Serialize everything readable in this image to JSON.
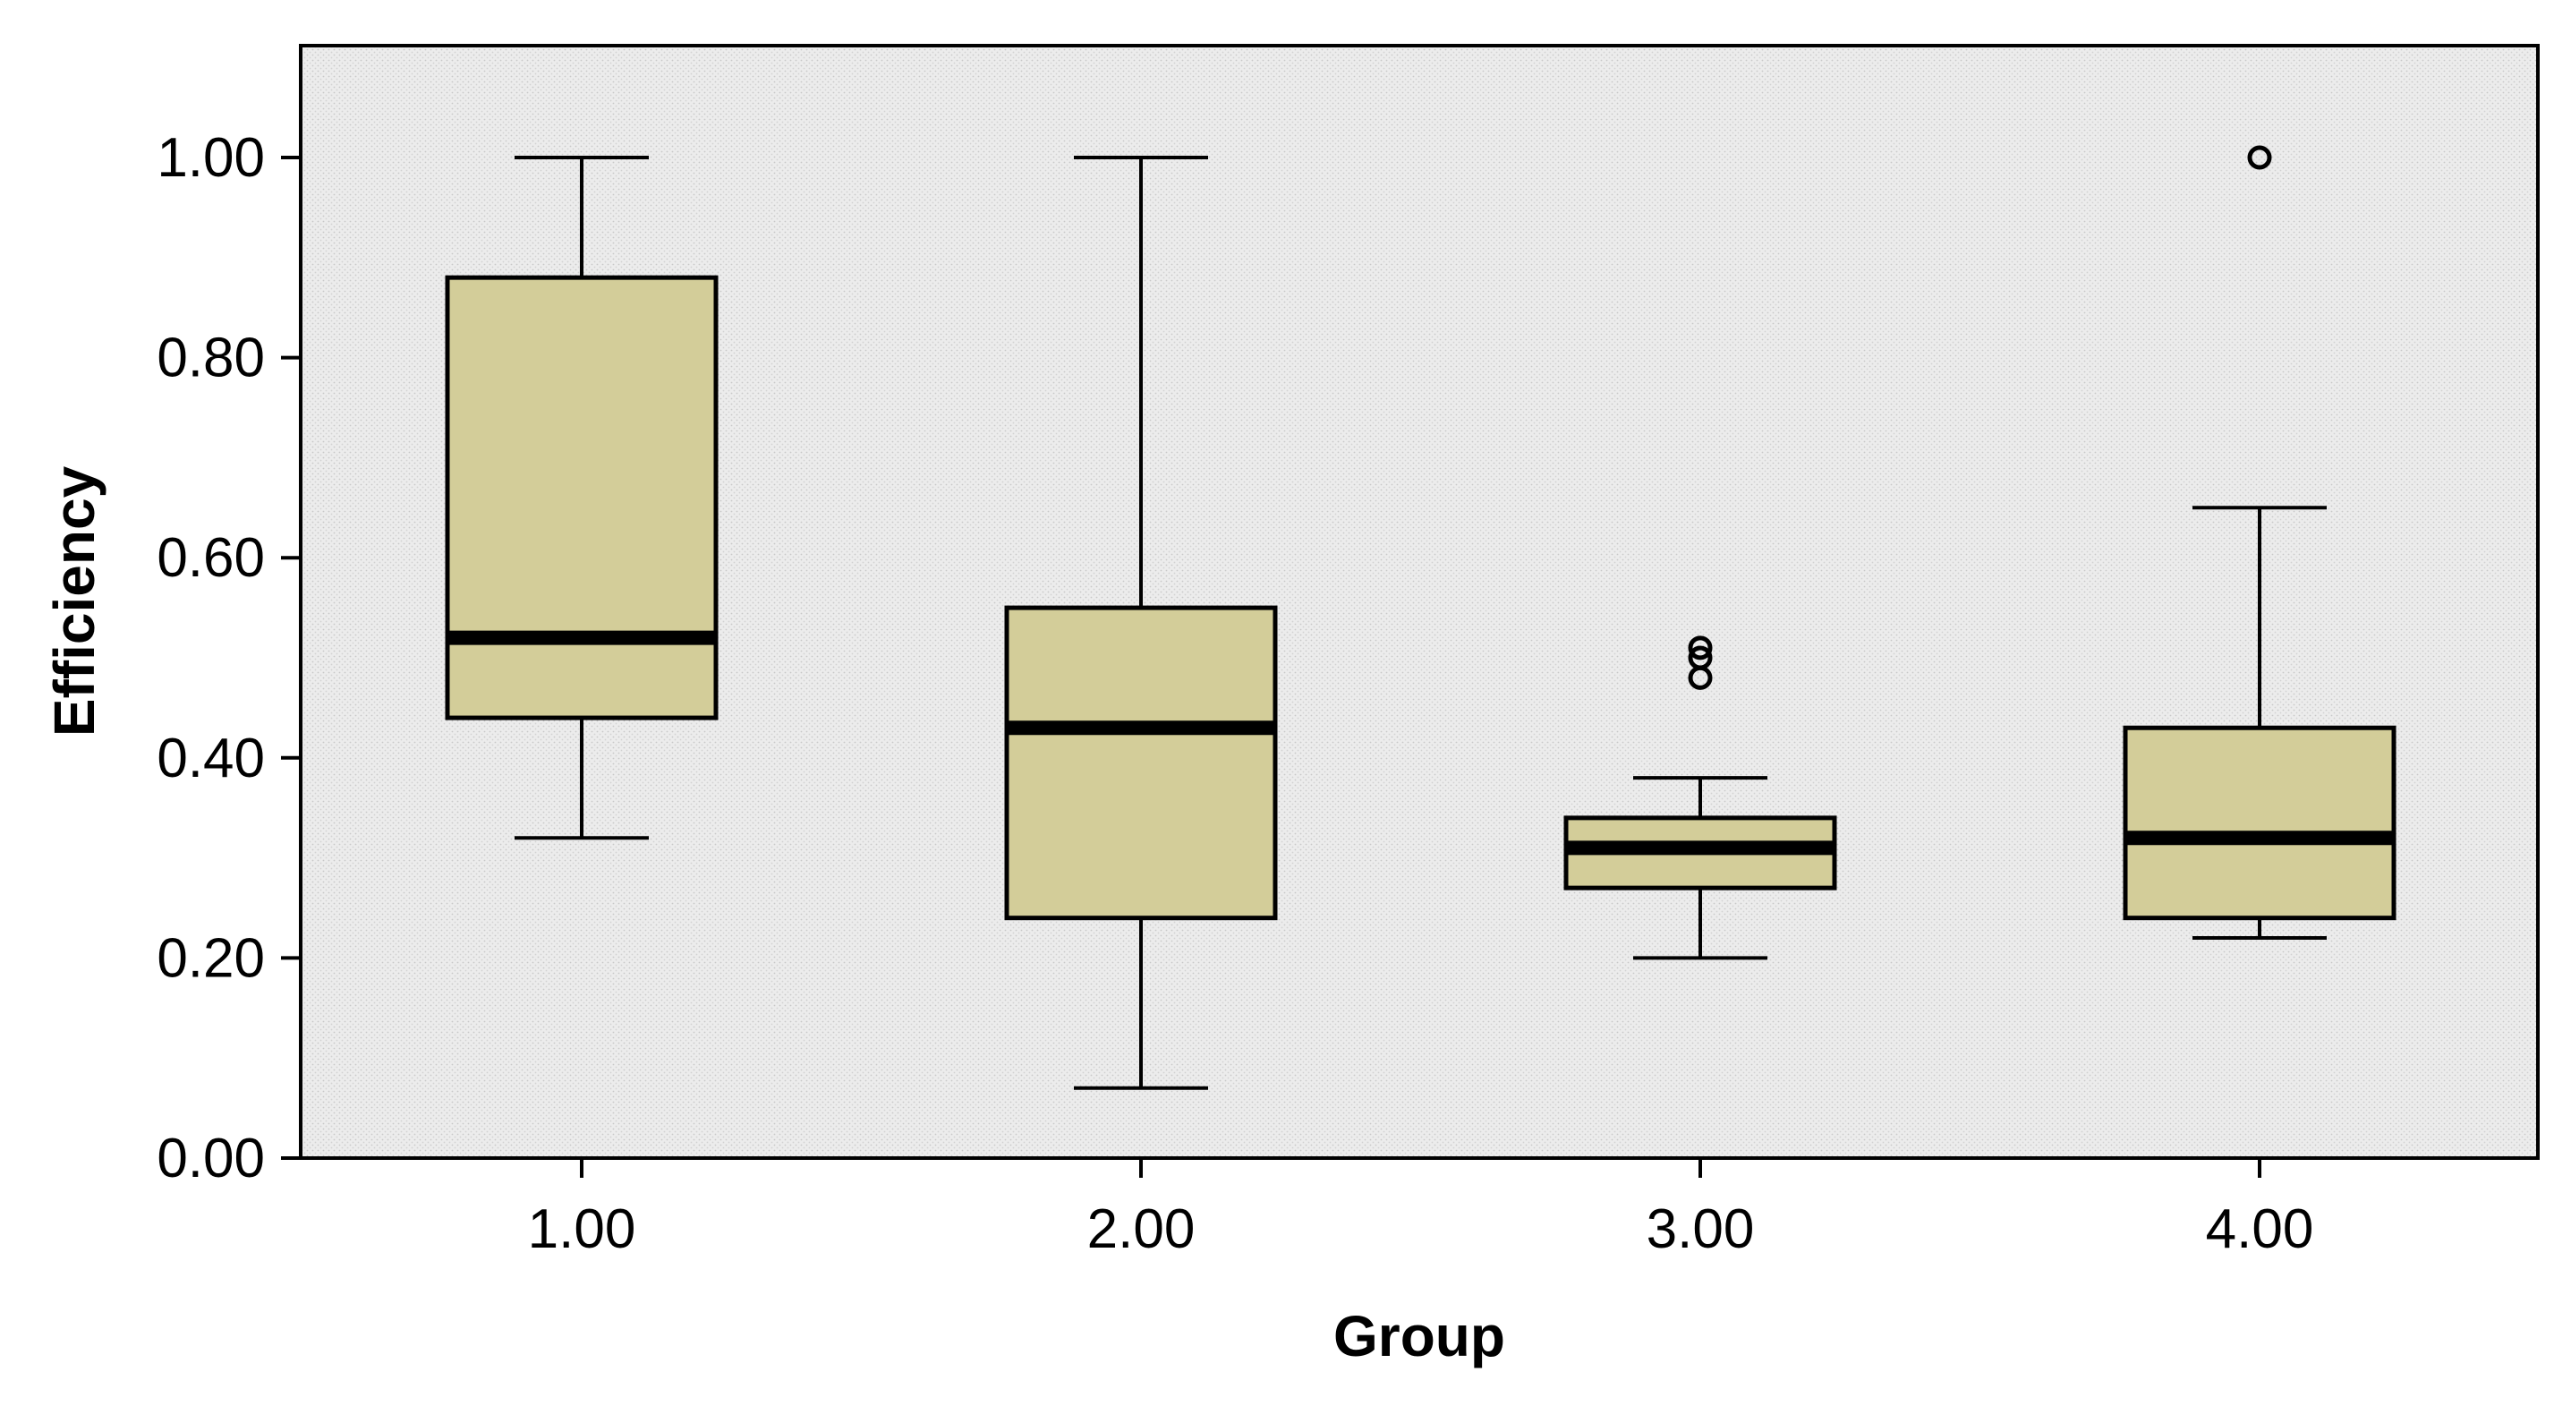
{
  "chart_data": {
    "type": "box",
    "xlabel": "Group",
    "ylabel": "Efficiency",
    "ylim": [
      0,
      1.1
    ],
    "yticks": [
      "0.00",
      "0.20",
      "0.40",
      "0.60",
      "0.80",
      "1.00"
    ],
    "yticks_values": [
      0,
      0.2,
      0.4,
      0.6,
      0.8,
      1.0
    ],
    "categories": [
      "1.00",
      "2.00",
      "3.00",
      "4.00"
    ],
    "boxes": [
      {
        "group": "1.00",
        "whisker_low": 0.32,
        "q1": 0.44,
        "median": 0.52,
        "q3": 0.88,
        "whisker_high": 1.0,
        "outliers": []
      },
      {
        "group": "2.00",
        "whisker_low": 0.07,
        "q1": 0.24,
        "median": 0.43,
        "q3": 0.55,
        "whisker_high": 1.0,
        "outliers": []
      },
      {
        "group": "3.00",
        "whisker_low": 0.2,
        "q1": 0.27,
        "median": 0.31,
        "q3": 0.34,
        "whisker_high": 0.38,
        "outliers": [
          0.48,
          0.5,
          0.51
        ]
      },
      {
        "group": "4.00",
        "whisker_low": 0.22,
        "q1": 0.24,
        "median": 0.32,
        "q3": 0.43,
        "whisker_high": 0.65,
        "outliers": [
          1.0
        ]
      }
    ],
    "colors": {
      "box_fill": "#d3cd99",
      "plot_bg": "#ececec",
      "line": "#000000"
    },
    "grid": false,
    "legend": "none"
  }
}
